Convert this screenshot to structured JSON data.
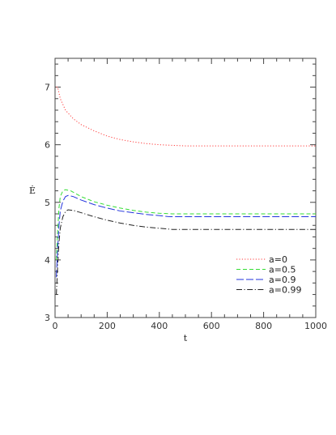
{
  "chart_data": {
    "type": "line",
    "title": "",
    "xlabel": "t",
    "ylabel": "Ė",
    "xlim": [
      0,
      1000
    ],
    "ylim": [
      3,
      7.5
    ],
    "x_ticks": [
      "0",
      "200",
      "400",
      "600",
      "800",
      "1000"
    ],
    "y_ticks": [
      "3",
      "4",
      "5",
      "6",
      "7"
    ],
    "grid": false,
    "legend_position": "lower-right",
    "series": [
      {
        "name": "a=0",
        "color": "#ff3b3b",
        "dash": "dotted",
        "points": [
          [
            5,
            7.0
          ],
          [
            10,
            7.0
          ],
          [
            15,
            6.9
          ],
          [
            20,
            6.8
          ],
          [
            40,
            6.6
          ],
          [
            70,
            6.45
          ],
          [
            100,
            6.35
          ],
          [
            150,
            6.24
          ],
          [
            200,
            6.15
          ],
          [
            250,
            6.09
          ],
          [
            300,
            6.05
          ],
          [
            350,
            6.02
          ],
          [
            400,
            6.0
          ],
          [
            450,
            5.99
          ],
          [
            500,
            5.98
          ],
          [
            600,
            5.98
          ],
          [
            700,
            5.98
          ],
          [
            800,
            5.98
          ],
          [
            900,
            5.98
          ],
          [
            1000,
            5.98
          ]
        ]
      },
      {
        "name": "a=0.5",
        "color": "#33dd33",
        "dash": "dashed",
        "points": [
          [
            5,
            4.0
          ],
          [
            10,
            4.5
          ],
          [
            15,
            4.9
          ],
          [
            20,
            5.1
          ],
          [
            30,
            5.2
          ],
          [
            40,
            5.22
          ],
          [
            60,
            5.2
          ],
          [
            80,
            5.15
          ],
          [
            100,
            5.1
          ],
          [
            150,
            5.01
          ],
          [
            200,
            4.95
          ],
          [
            250,
            4.9
          ],
          [
            300,
            4.86
          ],
          [
            350,
            4.83
          ],
          [
            400,
            4.81
          ],
          [
            450,
            4.8
          ],
          [
            500,
            4.8
          ],
          [
            600,
            4.8
          ],
          [
            700,
            4.8
          ],
          [
            800,
            4.8
          ],
          [
            900,
            4.8
          ],
          [
            1000,
            4.8
          ]
        ]
      },
      {
        "name": "a=0.9",
        "color": "#2233dd",
        "dash": "longdash",
        "points": [
          [
            5,
            3.7
          ],
          [
            10,
            4.2
          ],
          [
            15,
            4.6
          ],
          [
            20,
            4.85
          ],
          [
            30,
            5.02
          ],
          [
            40,
            5.1
          ],
          [
            50,
            5.12
          ],
          [
            70,
            5.1
          ],
          [
            100,
            5.04
          ],
          [
            150,
            4.96
          ],
          [
            200,
            4.9
          ],
          [
            250,
            4.85
          ],
          [
            300,
            4.82
          ],
          [
            350,
            4.79
          ],
          [
            400,
            4.77
          ],
          [
            440,
            4.75
          ],
          [
            500,
            4.75
          ],
          [
            600,
            4.75
          ],
          [
            700,
            4.75
          ],
          [
            800,
            4.75
          ],
          [
            900,
            4.75
          ],
          [
            1000,
            4.75
          ]
        ]
      },
      {
        "name": "a=0.99",
        "color": "#222222",
        "dash": "dashdot",
        "points": [
          [
            5,
            3.4
          ],
          [
            10,
            3.9
          ],
          [
            15,
            4.3
          ],
          [
            20,
            4.55
          ],
          [
            30,
            4.75
          ],
          [
            40,
            4.84
          ],
          [
            50,
            4.87
          ],
          [
            70,
            4.86
          ],
          [
            100,
            4.82
          ],
          [
            150,
            4.75
          ],
          [
            200,
            4.69
          ],
          [
            250,
            4.64
          ],
          [
            300,
            4.6
          ],
          [
            350,
            4.57
          ],
          [
            400,
            4.55
          ],
          [
            450,
            4.53
          ],
          [
            500,
            4.53
          ],
          [
            600,
            4.53
          ],
          [
            700,
            4.53
          ],
          [
            800,
            4.53
          ],
          [
            900,
            4.53
          ],
          [
            1000,
            4.53
          ]
        ]
      }
    ]
  }
}
